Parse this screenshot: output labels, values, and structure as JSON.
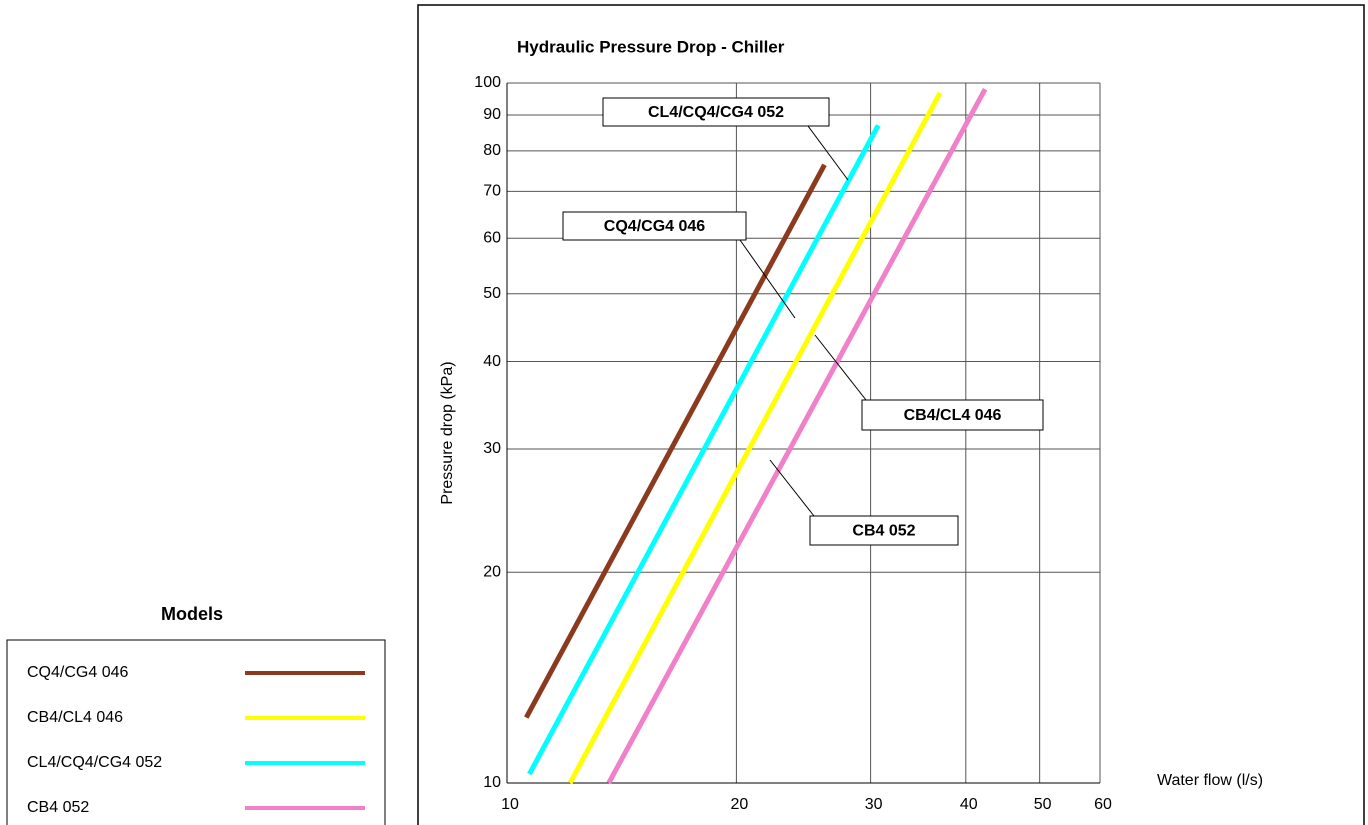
{
  "chart_data": {
    "type": "line",
    "title": "Hydraulic Pressure Drop - Chiller",
    "x_label": "Water flow (l/s)",
    "y_label": "Pressure drop (kPa)",
    "legend_title": "Models",
    "xscale": "log",
    "yscale": "log",
    "grid": true,
    "xlim": [
      10,
      60
    ],
    "xticks": [
      10,
      20,
      30,
      40,
      50,
      60
    ],
    "ylim": [
      10,
      100
    ],
    "yticks": [
      10,
      20,
      30,
      40,
      50,
      60,
      70,
      80,
      90,
      100
    ],
    "series": [
      {
        "name": "CQ4/CG4 046",
        "color": "#8b3a1e",
        "x": [
          10.6,
          26.1
        ],
        "values": [
          12.4,
          76.4
        ]
      },
      {
        "name": "CB4/CL4 046",
        "color": "#ffff00",
        "x": [
          12.1,
          37.0
        ],
        "values": [
          10,
          96.8
        ]
      },
      {
        "name": "CL4/CQ4/CG4 052",
        "color": "#00ffff",
        "x": [
          10.7,
          30.7
        ],
        "values": [
          10.3,
          87
        ]
      },
      {
        "name": "CB4 052",
        "color": "#f080c8",
        "x": [
          13.6,
          42.4
        ],
        "values": [
          10,
          98
        ]
      }
    ],
    "annotations": [
      {
        "text": "CL4/CQ4/CG4 052"
      },
      {
        "text": "CQ4/CG4 046"
      },
      {
        "text": "CB4/CL4 046"
      },
      {
        "text": "CB4 052"
      }
    ]
  }
}
